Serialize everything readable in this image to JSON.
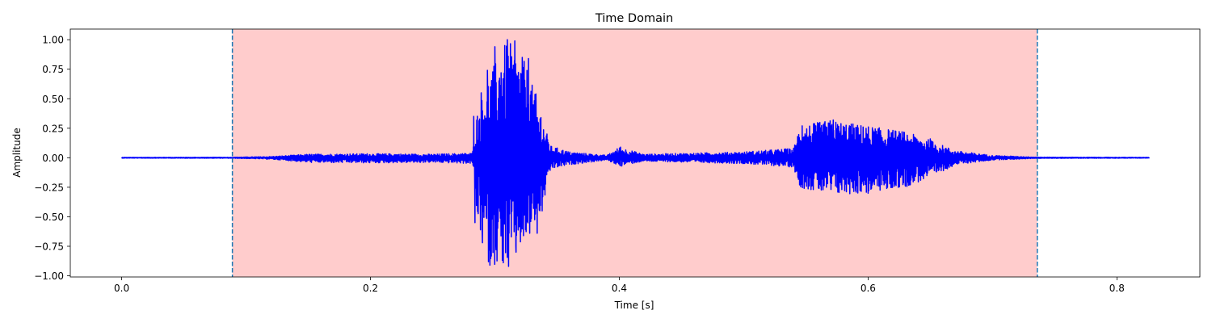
{
  "chart_data": {
    "type": "line",
    "title": "Time Domain",
    "xlabel": "Time [s]",
    "ylabel": "Amplitude",
    "xlim": [
      -0.0413,
      0.8667
    ],
    "ylim": [
      -1.01,
      1.09
    ],
    "xticks": [
      0.0,
      0.2,
      0.4,
      0.6,
      0.8
    ],
    "xtick_labels": [
      "0.0",
      "0.2",
      "0.4",
      "0.6",
      "0.8"
    ],
    "yticks": [
      1.0,
      0.75,
      0.5,
      0.25,
      0.0,
      -0.25,
      -0.5,
      -0.75,
      -1.0
    ],
    "ytick_labels": [
      "1.00",
      "0.75",
      "0.50",
      "0.25",
      "0.00",
      "−0.25",
      "−0.50",
      "−0.75",
      "−1.00"
    ],
    "grid": false,
    "highlight_region": {
      "x_start": 0.089,
      "x_end": 0.736,
      "color": "#ffcccc"
    },
    "vlines": [
      {
        "x": 0.089,
        "style": "dashed",
        "color": "#1f77b4"
      },
      {
        "x": 0.736,
        "style": "dashed",
        "color": "#1f77b4"
      }
    ],
    "series": [
      {
        "color": "#0000ff",
        "x_range": [
          0.0,
          0.826
        ],
        "envelope": [
          {
            "x": 0.0,
            "pos": 0.003,
            "neg": -0.003
          },
          {
            "x": 0.089,
            "pos": 0.004,
            "neg": -0.004
          },
          {
            "x": 0.12,
            "pos": 0.01,
            "neg": -0.012
          },
          {
            "x": 0.15,
            "pos": 0.03,
            "neg": -0.04
          },
          {
            "x": 0.2,
            "pos": 0.035,
            "neg": -0.045
          },
          {
            "x": 0.25,
            "pos": 0.03,
            "neg": -0.04
          },
          {
            "x": 0.282,
            "pos": 0.04,
            "neg": -0.05
          },
          {
            "x": 0.285,
            "pos": 0.35,
            "neg": -0.5
          },
          {
            "x": 0.295,
            "pos": 0.7,
            "neg": -0.9
          },
          {
            "x": 0.31,
            "pos": 1.0,
            "neg": -0.92
          },
          {
            "x": 0.325,
            "pos": 0.8,
            "neg": -0.7
          },
          {
            "x": 0.338,
            "pos": 0.33,
            "neg": -0.45
          },
          {
            "x": 0.345,
            "pos": 0.1,
            "neg": -0.1
          },
          {
            "x": 0.36,
            "pos": 0.05,
            "neg": -0.06
          },
          {
            "x": 0.39,
            "pos": 0.02,
            "neg": -0.02
          },
          {
            "x": 0.4,
            "pos": 0.09,
            "neg": -0.07
          },
          {
            "x": 0.42,
            "pos": 0.03,
            "neg": -0.03
          },
          {
            "x": 0.5,
            "pos": 0.05,
            "neg": -0.05
          },
          {
            "x": 0.54,
            "pos": 0.08,
            "neg": -0.08
          },
          {
            "x": 0.545,
            "pos": 0.27,
            "neg": -0.25
          },
          {
            "x": 0.57,
            "pos": 0.32,
            "neg": -0.32
          },
          {
            "x": 0.6,
            "pos": 0.27,
            "neg": -0.3
          },
          {
            "x": 0.63,
            "pos": 0.22,
            "neg": -0.25
          },
          {
            "x": 0.65,
            "pos": 0.15,
            "neg": -0.17
          },
          {
            "x": 0.67,
            "pos": 0.06,
            "neg": -0.06
          },
          {
            "x": 0.7,
            "pos": 0.02,
            "neg": -0.02
          },
          {
            "x": 0.736,
            "pos": 0.005,
            "neg": -0.005
          },
          {
            "x": 0.826,
            "pos": 0.003,
            "neg": -0.003
          }
        ],
        "peaks": [
          {
            "x": 0.283,
            "y": 0.35
          },
          {
            "x": 0.284,
            "y": -0.55
          },
          {
            "x": 0.289,
            "y": 0.55
          },
          {
            "x": 0.29,
            "y": -0.72
          },
          {
            "x": 0.294,
            "y": 0.74
          },
          {
            "x": 0.296,
            "y": -0.91
          },
          {
            "x": 0.3,
            "y": 0.94
          },
          {
            "x": 0.301,
            "y": -0.78
          },
          {
            "x": 0.305,
            "y": 0.72
          },
          {
            "x": 0.306,
            "y": -0.87
          },
          {
            "x": 0.31,
            "y": 1.0
          },
          {
            "x": 0.311,
            "y": -0.92
          },
          {
            "x": 0.316,
            "y": 0.99
          },
          {
            "x": 0.317,
            "y": -0.8
          },
          {
            "x": 0.322,
            "y": 0.85
          },
          {
            "x": 0.323,
            "y": -0.66
          },
          {
            "x": 0.327,
            "y": 0.84
          },
          {
            "x": 0.328,
            "y": -0.64
          },
          {
            "x": 0.333,
            "y": 0.54
          },
          {
            "x": 0.334,
            "y": -0.64
          },
          {
            "x": 0.337,
            "y": 0.34
          },
          {
            "x": 0.338,
            "y": -0.45
          },
          {
            "x": 0.401,
            "y": 0.09
          },
          {
            "x": 0.402,
            "y": -0.07
          },
          {
            "x": 0.547,
            "y": 0.27
          },
          {
            "x": 0.55,
            "y": -0.18
          },
          {
            "x": 0.56,
            "y": 0.29
          },
          {
            "x": 0.562,
            "y": -0.24
          },
          {
            "x": 0.572,
            "y": 0.32
          },
          {
            "x": 0.575,
            "y": -0.25
          },
          {
            "x": 0.585,
            "y": 0.27
          },
          {
            "x": 0.59,
            "y": -0.28
          },
          {
            "x": 0.596,
            "y": 0.26
          },
          {
            "x": 0.6,
            "y": -0.3
          },
          {
            "x": 0.61,
            "y": 0.23
          },
          {
            "x": 0.615,
            "y": -0.26
          },
          {
            "x": 0.625,
            "y": 0.2
          },
          {
            "x": 0.63,
            "y": -0.24
          },
          {
            "x": 0.65,
            "y": 0.16
          },
          {
            "x": 0.655,
            "y": -0.12
          }
        ]
      }
    ]
  }
}
